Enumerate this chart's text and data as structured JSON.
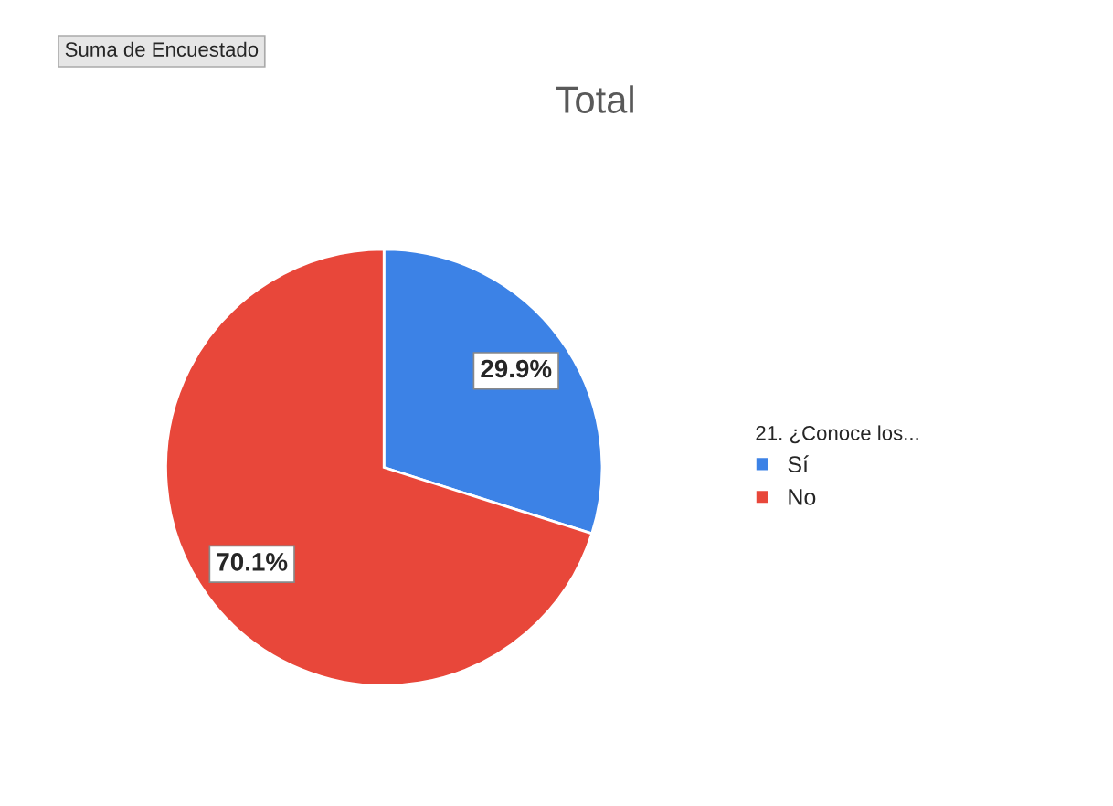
{
  "chart_data": {
    "type": "pie",
    "title": "Total",
    "legend_title": "21. ¿Conoce los...",
    "categories": [
      "Sí",
      "No"
    ],
    "values": [
      29.9,
      70.1
    ],
    "colors": [
      "#3c82e6",
      "#e8473a"
    ],
    "value_labels": [
      "29.9%",
      "70.1%"
    ],
    "annotations": [
      "Suma de Encuestado"
    ],
    "legend": "right"
  }
}
